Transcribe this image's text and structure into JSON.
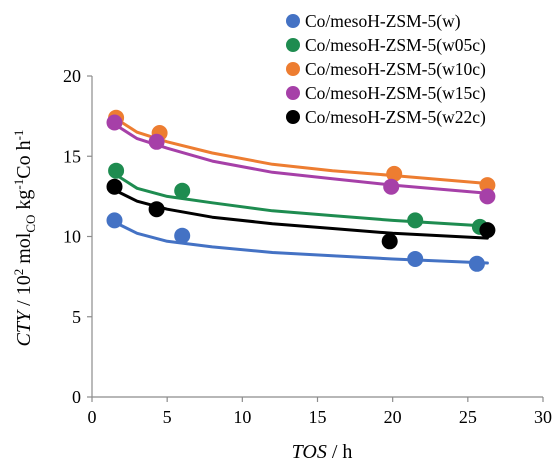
{
  "chart_data": {
    "type": "scatter",
    "xlabel": {
      "italic": "TOS",
      "rest": " / h"
    },
    "ylabel": {
      "italic": "CTY",
      "rest": " / 10",
      "sup1": "2",
      "mid": " mol",
      "sub": "CO",
      "mid2": " kg",
      "sup2": "-1",
      "mid3": "Co h",
      "sup3": "-1"
    },
    "xlim": [
      0,
      30
    ],
    "ylim": [
      0,
      20
    ],
    "xticks": [
      "0",
      "5",
      "10",
      "15",
      "20",
      "25",
      "30"
    ],
    "yticks": [
      "0",
      "5",
      "10",
      "15",
      "20"
    ],
    "grid": false,
    "legend_position": "top-right",
    "series": [
      {
        "name": "Co/mesoH-ZSM-5(w)",
        "color": "#4472C4",
        "points": [
          [
            1.5,
            11.0
          ],
          [
            6.0,
            10.05
          ],
          [
            21.5,
            8.6
          ],
          [
            25.6,
            8.3
          ]
        ],
        "trend": [
          [
            1.5,
            10.9
          ],
          [
            3,
            10.2
          ],
          [
            5,
            9.7
          ],
          [
            8,
            9.35
          ],
          [
            12,
            9.0
          ],
          [
            16,
            8.8
          ],
          [
            20,
            8.6
          ],
          [
            26.3,
            8.35
          ]
        ]
      },
      {
        "name": "Co/mesoH-ZSM-5(w05c)",
        "color": "#1E8C50",
        "points": [
          [
            1.6,
            14.1
          ],
          [
            6.0,
            12.85
          ],
          [
            21.5,
            11.0
          ],
          [
            25.8,
            10.6
          ]
        ],
        "trend": [
          [
            1.5,
            13.9
          ],
          [
            3,
            13.0
          ],
          [
            5,
            12.5
          ],
          [
            8,
            12.1
          ],
          [
            12,
            11.6
          ],
          [
            16,
            11.3
          ],
          [
            20,
            11.0
          ],
          [
            26.3,
            10.65
          ]
        ]
      },
      {
        "name": "Co/mesoH-ZSM-5(w10c)",
        "color": "#ED7D31",
        "points": [
          [
            1.6,
            17.4
          ],
          [
            4.5,
            16.45
          ],
          [
            20.1,
            13.9
          ],
          [
            26.3,
            13.2
          ]
        ],
        "trend": [
          [
            1.5,
            17.4
          ],
          [
            3,
            16.5
          ],
          [
            5,
            15.9
          ],
          [
            8,
            15.2
          ],
          [
            12,
            14.5
          ],
          [
            16,
            14.1
          ],
          [
            20,
            13.8
          ],
          [
            26.3,
            13.3
          ]
        ]
      },
      {
        "name": "Co/mesoH-ZSM-5(w15c)",
        "color": "#A640A8",
        "points": [
          [
            1.5,
            17.1
          ],
          [
            4.3,
            15.9
          ],
          [
            19.9,
            13.1
          ],
          [
            26.3,
            12.5
          ]
        ],
        "trend": [
          [
            1.5,
            17.0
          ],
          [
            3,
            16.1
          ],
          [
            5,
            15.5
          ],
          [
            8,
            14.7
          ],
          [
            12,
            14.0
          ],
          [
            16,
            13.6
          ],
          [
            20,
            13.2
          ],
          [
            26.3,
            12.7
          ]
        ]
      },
      {
        "name": "Co/mesoH-ZSM-5(w22c)",
        "color": "#000000",
        "points": [
          [
            1.5,
            13.1
          ],
          [
            4.3,
            11.7
          ],
          [
            19.8,
            9.7
          ],
          [
            26.3,
            10.4
          ]
        ],
        "trend": [
          [
            1.5,
            12.9
          ],
          [
            3,
            12.2
          ],
          [
            5,
            11.7
          ],
          [
            8,
            11.2
          ],
          [
            12,
            10.8
          ],
          [
            16,
            10.5
          ],
          [
            20,
            10.2
          ],
          [
            26.3,
            9.9
          ]
        ]
      }
    ]
  }
}
